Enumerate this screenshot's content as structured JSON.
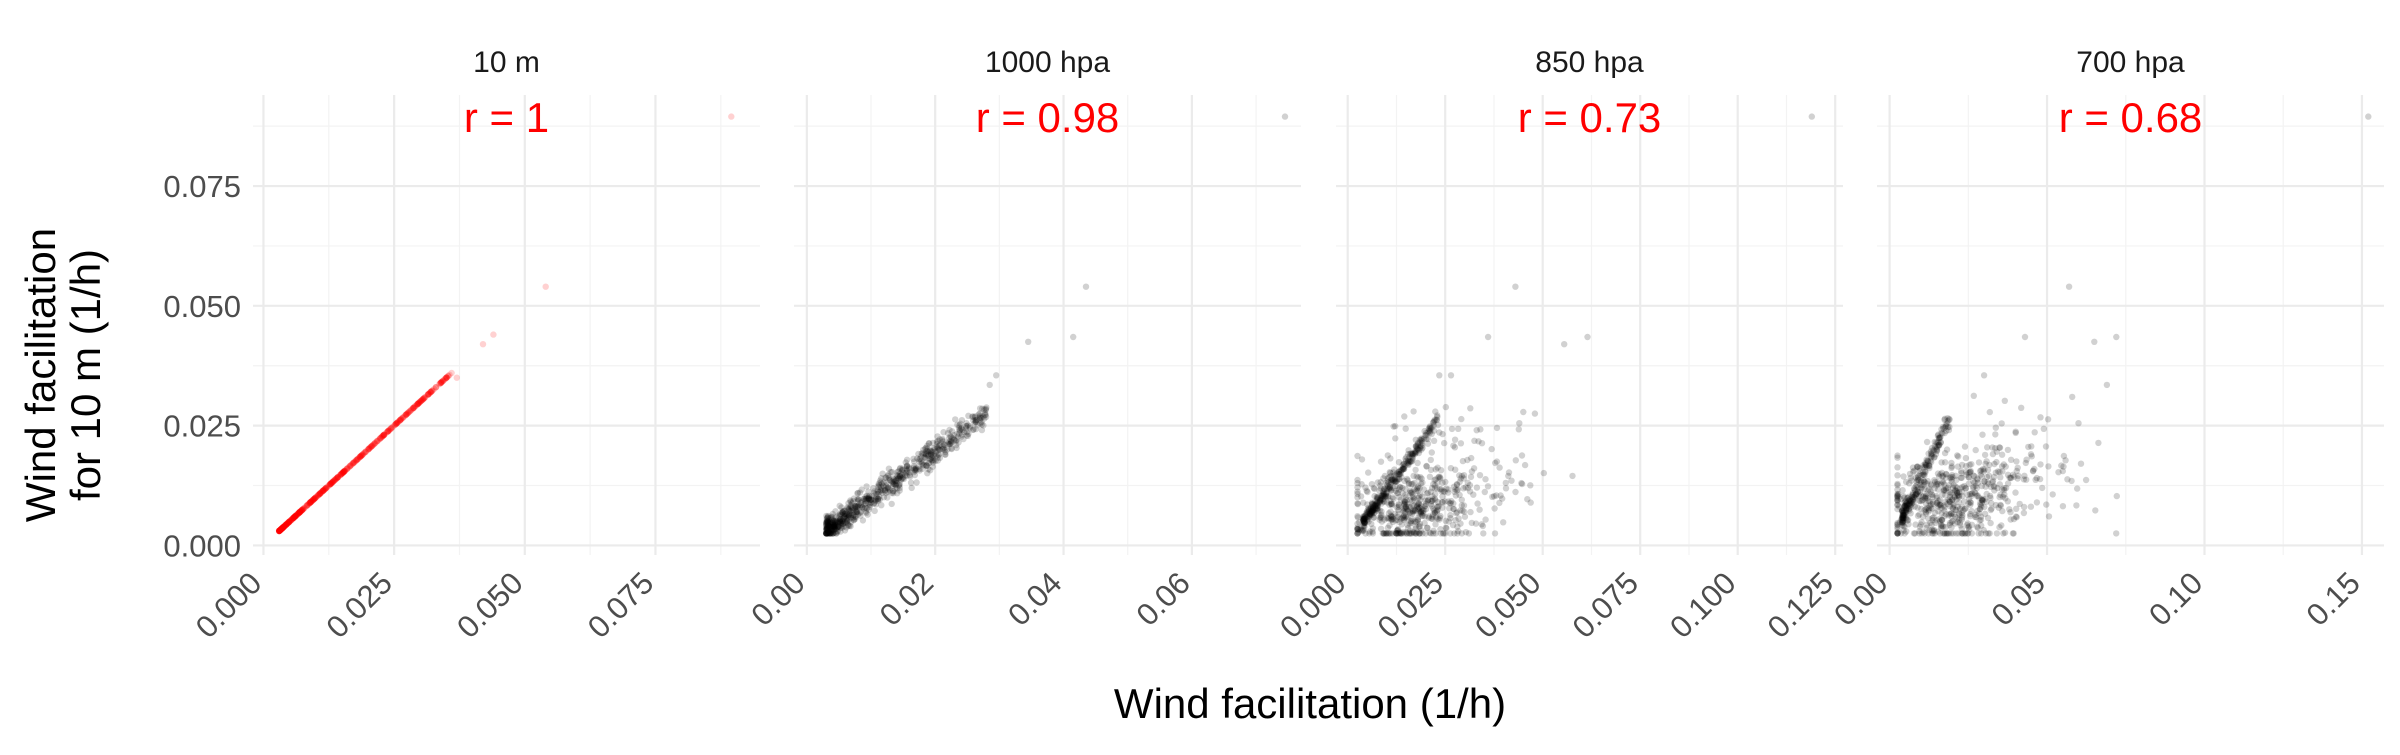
{
  "figure": {
    "xlabel": "Wind facilitation (1/h)",
    "ylabel_lines": [
      "Wind facilitation",
      "for 10 m (1/h)"
    ]
  },
  "chart_data": [
    {
      "type": "scatter",
      "facet": "10 m",
      "annotation": "r = 1",
      "point_color": "#ff0000",
      "xlim": [
        -0.002,
        0.095
      ],
      "ylim": [
        -0.002,
        0.094
      ],
      "xticks": [
        0.0,
        0.025,
        0.05,
        0.075
      ],
      "xtick_labels": [
        "0.000",
        "0.025",
        "0.050",
        "0.075"
      ],
      "yticks": [
        0.0,
        0.025,
        0.05,
        0.075
      ],
      "ytick_labels": [
        "0.000",
        "0.025",
        "0.050",
        "0.075"
      ],
      "outliers": [
        [
          0.0895,
          0.0895
        ],
        [
          0.054,
          0.054
        ],
        [
          0.044,
          0.044
        ],
        [
          0.042,
          0.042
        ],
        [
          0.037,
          0.035
        ]
      ],
      "clusters": [
        {
          "kind": "line",
          "x0": 0.003,
          "x1": 0.036,
          "slope": 1.0,
          "jitter": 0.0,
          "count": 520
        }
      ]
    },
    {
      "type": "scatter",
      "facet": "1000 hpa",
      "annotation": "r = 0.98",
      "point_color": "#000000",
      "xlim": [
        -0.002,
        0.077
      ],
      "ylim": [
        -0.002,
        0.094
      ],
      "xticks": [
        0.0,
        0.02,
        0.04,
        0.06
      ],
      "xtick_labels": [
        "0.00",
        "0.02",
        "0.04",
        "0.06"
      ],
      "yticks": [
        0.0,
        0.025,
        0.05,
        0.075
      ],
      "ytick_labels": [
        "0.000",
        "0.025",
        "0.050",
        "0.075"
      ],
      "outliers": [
        [
          0.0745,
          0.0895
        ],
        [
          0.0435,
          0.054
        ],
        [
          0.0345,
          0.0425
        ],
        [
          0.0415,
          0.0435
        ],
        [
          0.0295,
          0.0355
        ],
        [
          0.0285,
          0.0335
        ]
      ],
      "clusters": [
        {
          "kind": "line",
          "x0": 0.003,
          "x1": 0.028,
          "slope": 0.98,
          "jitter": 0.0014,
          "count": 650
        }
      ]
    },
    {
      "type": "scatter",
      "facet": "850 hpa",
      "annotation": "r = 0.73",
      "point_color": "#000000",
      "xlim": [
        -0.003,
        0.127
      ],
      "ylim": [
        -0.002,
        0.094
      ],
      "xticks": [
        0.0,
        0.025,
        0.05,
        0.075,
        0.1,
        0.125
      ],
      "xtick_labels": [
        "0.000",
        "0.025",
        "0.050",
        "0.075",
        "0.100",
        "0.125"
      ],
      "yticks": [
        0.0,
        0.025,
        0.05,
        0.075
      ],
      "ytick_labels": [
        "0.000",
        "0.025",
        "0.050",
        "0.075"
      ],
      "outliers": [
        [
          0.119,
          0.0895
        ],
        [
          0.043,
          0.054
        ],
        [
          0.036,
          0.0435
        ],
        [
          0.0615,
          0.0435
        ],
        [
          0.0555,
          0.042
        ],
        [
          0.0235,
          0.0355
        ],
        [
          0.0265,
          0.0355
        ],
        [
          0.044,
          0.0255
        ],
        [
          0.042,
          0.0135
        ],
        [
          0.048,
          0.0275
        ]
      ],
      "clusters": [
        {
          "kind": "line",
          "x0": 0.004,
          "x1": 0.023,
          "slope": 1.15,
          "jitter": 0.0008,
          "count": 260
        },
        {
          "kind": "blob",
          "cx": 0.016,
          "cy": 0.0075,
          "sx": 0.008,
          "sy": 0.004,
          "count": 420
        },
        {
          "kind": "blob",
          "cx": 0.028,
          "cy": 0.015,
          "sx": 0.01,
          "sy": 0.006,
          "count": 140
        }
      ]
    },
    {
      "type": "scatter",
      "facet": "700 hpa",
      "annotation": "r = 0.68",
      "point_color": "#000000",
      "xlim": [
        -0.004,
        0.157
      ],
      "ylim": [
        -0.002,
        0.094
      ],
      "xticks": [
        0.0,
        0.05,
        0.1,
        0.15
      ],
      "xtick_labels": [
        "0.00",
        "0.05",
        "0.10",
        "0.15"
      ],
      "yticks": [
        0.0,
        0.025,
        0.05,
        0.075
      ],
      "ytick_labels": [
        "0.000",
        "0.025",
        "0.050",
        "0.075"
      ],
      "outliers": [
        [
          0.152,
          0.0895
        ],
        [
          0.057,
          0.054
        ],
        [
          0.072,
          0.0435
        ],
        [
          0.065,
          0.0425
        ],
        [
          0.043,
          0.0435
        ],
        [
          0.06,
          0.0255
        ],
        [
          0.069,
          0.0335
        ],
        [
          0.058,
          0.031
        ],
        [
          0.03,
          0.0355
        ],
        [
          0.055,
          0.0155
        ]
      ],
      "clusters": [
        {
          "kind": "line",
          "x0": 0.004,
          "x1": 0.019,
          "slope": 1.4,
          "jitter": 0.001,
          "count": 180
        },
        {
          "kind": "blob",
          "cx": 0.018,
          "cy": 0.0085,
          "sx": 0.01,
          "sy": 0.0045,
          "count": 430
        },
        {
          "kind": "blob",
          "cx": 0.035,
          "cy": 0.015,
          "sx": 0.013,
          "sy": 0.006,
          "count": 160
        }
      ]
    }
  ]
}
